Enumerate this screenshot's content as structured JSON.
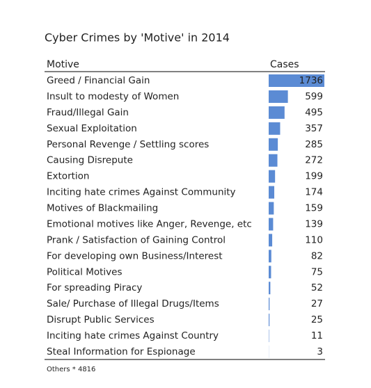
{
  "chart_data": {
    "type": "bar",
    "title": "Cyber Crimes by 'Motive' in 2014",
    "category_header": "Motive",
    "value_header": "Cases",
    "categories": [
      "Greed / Financial Gain",
      "Insult to modesty of Women",
      "Fraud/Illegal Gain",
      "Sexual Exploitation",
      "Personal Revenge / Settling scores",
      "Causing Disrepute",
      "Extortion",
      "Inciting hate crimes Against Community",
      "Motives of Blackmailing",
      "Emotional motives like Anger, Revenge, etc",
      "Prank / Satisfaction of Gaining Control",
      "For developing own Business/Interest",
      "Political Motives",
      "For spreading Piracy",
      "Sale/ Purchase of Illegal Drugs/Items",
      "Disrupt Public Services",
      "Inciting hate crimes Against Country",
      "Steal Information for Espionage"
    ],
    "values": [
      1736,
      599,
      495,
      357,
      285,
      272,
      199,
      174,
      159,
      139,
      110,
      82,
      75,
      52,
      27,
      25,
      11,
      3
    ],
    "color": "#5b8bd4",
    "footnote": "Others * 4816"
  }
}
